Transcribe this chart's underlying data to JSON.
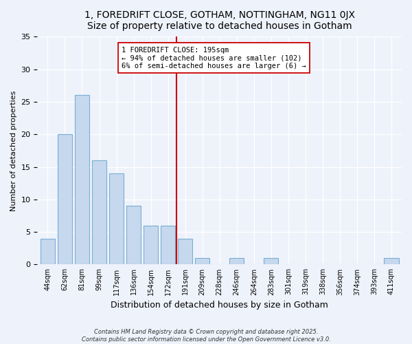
{
  "title": "1, FOREDRIFT CLOSE, GOTHAM, NOTTINGHAM, NG11 0JX",
  "subtitle": "Size of property relative to detached houses in Gotham",
  "xlabel": "Distribution of detached houses by size in Gotham",
  "ylabel": "Number of detached properties",
  "background_color": "#eef2fb",
  "bar_color": "#c5d8ee",
  "bar_edge_color": "#7aafd4",
  "categories": [
    "44sqm",
    "62sqm",
    "81sqm",
    "99sqm",
    "117sqm",
    "136sqm",
    "154sqm",
    "172sqm",
    "191sqm",
    "209sqm",
    "228sqm",
    "246sqm",
    "264sqm",
    "283sqm",
    "301sqm",
    "319sqm",
    "338sqm",
    "356sqm",
    "374sqm",
    "393sqm",
    "411sqm"
  ],
  "values": [
    4,
    20,
    26,
    16,
    14,
    9,
    6,
    6,
    4,
    1,
    0,
    1,
    0,
    1,
    0,
    0,
    0,
    0,
    0,
    0,
    1
  ],
  "vline_pos": 8.0,
  "vline_color": "#cc0000",
  "annotation_line1": "1 FOREDRIFT CLOSE: 195sqm",
  "annotation_line2": "← 94% of detached houses are smaller (102)",
  "annotation_line3": "6% of semi-detached houses are larger (6) →",
  "ylim": [
    0,
    35
  ],
  "yticks": [
    0,
    5,
    10,
    15,
    20,
    25,
    30,
    35
  ],
  "footer_line1": "Contains HM Land Registry data © Crown copyright and database right 2025.",
  "footer_line2": "Contains public sector information licensed under the Open Government Licence v3.0."
}
